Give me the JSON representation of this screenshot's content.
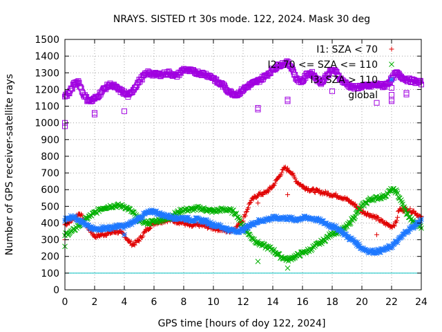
{
  "chart_data": {
    "type": "scatter",
    "title": "NRAYS. SISTED rt 30s mode. 122, 2024. Mask 30 deg",
    "xlabel": "GPS time [hours of doy 122, 2024]",
    "ylabel": "Number of GPS receiver-satellite rays",
    "xlim": [
      0,
      24
    ],
    "ylim": [
      0,
      1500
    ],
    "xticks": [
      0,
      2,
      4,
      6,
      8,
      10,
      12,
      14,
      16,
      18,
      20,
      22,
      24
    ],
    "yticks": [
      0,
      100,
      200,
      300,
      400,
      500,
      600,
      700,
      800,
      900,
      1000,
      1100,
      1200,
      1300,
      1400,
      1500
    ],
    "grid": true,
    "legend_position": "top-right",
    "reference_line": {
      "y": 100,
      "color": "#00c0c0"
    },
    "series": [
      {
        "name": "I1: SZA < 70",
        "color": "#e00000",
        "marker": "+",
        "x": [
          0,
          0.5,
          1,
          1.5,
          2,
          2.5,
          3,
          3.5,
          4,
          4.3,
          4.6,
          5,
          5.5,
          6,
          6.5,
          7,
          7.5,
          8,
          8.5,
          9,
          9.5,
          10,
          10.5,
          11,
          11.5,
          12,
          12.5,
          13,
          13.5,
          14,
          14.5,
          14.8,
          15.2,
          15.6,
          16,
          16.5,
          17,
          17.5,
          18,
          18.5,
          19,
          19.5,
          20,
          20.5,
          21,
          21.5,
          22,
          22.3,
          22.5,
          23,
          23.5,
          24
        ],
        "y": [
          390,
          420,
          460,
          380,
          320,
          330,
          340,
          350,
          330,
          290,
          270,
          300,
          360,
          400,
          410,
          420,
          410,
          400,
          380,
          390,
          380,
          370,
          360,
          350,
          370,
          420,
          530,
          570,
          580,
          620,
          690,
          730,
          710,
          650,
          620,
          600,
          590,
          580,
          570,
          560,
          540,
          510,
          470,
          450,
          430,
          400,
          380,
          400,
          480,
          480,
          470,
          430
        ],
        "outliers": {
          "x": [
            0,
            13,
            15,
            21,
            22
          ],
          "y": [
            300,
            520,
            570,
            330,
            255
          ]
        }
      },
      {
        "name": "I2: 70 <= SZA <= 110",
        "color": "#00b000",
        "marker": "x",
        "x": [
          0,
          0.5,
          1,
          1.5,
          2,
          2.5,
          3,
          3.5,
          4,
          4.5,
          5,
          5.5,
          6,
          6.5,
          7,
          7.5,
          8,
          8.5,
          9,
          9.5,
          10,
          10.5,
          11,
          11.5,
          12,
          12.5,
          13,
          13.5,
          14,
          14.5,
          15,
          15.5,
          16,
          16.5,
          17,
          17.5,
          18,
          18.5,
          19,
          19.5,
          20,
          20.5,
          21,
          21.5,
          22,
          22.3,
          22.6,
          23,
          23.5,
          24
        ],
        "y": [
          330,
          350,
          390,
          430,
          460,
          490,
          500,
          505,
          500,
          470,
          420,
          400,
          410,
          420,
          430,
          460,
          480,
          480,
          490,
          480,
          470,
          480,
          480,
          460,
          380,
          320,
          280,
          260,
          240,
          200,
          180,
          200,
          220,
          240,
          270,
          300,
          340,
          350,
          380,
          440,
          500,
          540,
          550,
          560,
          600,
          590,
          540,
          460,
          400,
          380
        ],
        "outliers": {
          "x": [
            0,
            13,
            15
          ],
          "y": [
            260,
            170,
            130
          ]
        }
      },
      {
        "name": "I3: SZA > 110",
        "color": "#1e78ff",
        "marker": "*",
        "x": [
          0,
          0.5,
          1,
          1.5,
          2,
          2.5,
          3,
          3.5,
          4,
          4.5,
          5,
          5.5,
          6,
          6.5,
          7,
          7.5,
          8,
          8.5,
          9,
          9.5,
          10,
          10.5,
          11,
          11.5,
          12,
          12.5,
          13,
          13.5,
          14,
          14.5,
          15,
          15.5,
          16,
          16.5,
          17,
          17.5,
          18,
          18.5,
          19,
          19.5,
          20,
          20.5,
          21,
          21.5,
          22,
          22.5,
          23,
          23.5,
          24
        ],
        "y": [
          420,
          440,
          420,
          380,
          360,
          370,
          370,
          380,
          380,
          400,
          430,
          460,
          470,
          450,
          440,
          430,
          430,
          420,
          420,
          410,
          390,
          380,
          360,
          350,
          360,
          390,
          410,
          420,
          430,
          430,
          430,
          420,
          430,
          430,
          420,
          400,
          380,
          360,
          320,
          290,
          250,
          230,
          230,
          240,
          260,
          300,
          350,
          380,
          420
        ],
        "outliers": {
          "x": [
            4,
            18
          ],
          "y": [
            330,
            390
          ]
        }
      },
      {
        "name": "global",
        "color": "#a000e0",
        "marker": "square",
        "x": [
          0,
          0.3,
          0.6,
          0.9,
          1.2,
          1.5,
          1.8,
          2.2,
          2.6,
          3,
          3.3,
          3.6,
          4,
          4.3,
          4.6,
          5,
          5.3,
          5.6,
          6,
          6.5,
          7,
          7.5,
          8,
          8.5,
          9,
          9.5,
          10,
          10.3,
          10.6,
          10.9,
          11.2,
          11.6,
          12,
          12.5,
          13,
          13.5,
          14,
          14.5,
          15,
          15.3,
          15.6,
          16,
          16.3,
          16.6,
          17,
          17.3,
          17.6,
          18,
          18.3,
          18.6,
          19,
          19.5,
          20,
          20.5,
          21,
          21.5,
          22,
          22.3,
          22.6,
          23,
          23.5,
          24
        ],
        "y": [
          1160,
          1180,
          1230,
          1250,
          1180,
          1140,
          1130,
          1160,
          1200,
          1230,
          1220,
          1200,
          1180,
          1160,
          1200,
          1250,
          1280,
          1300,
          1290,
          1290,
          1300,
          1280,
          1320,
          1310,
          1300,
          1290,
          1270,
          1240,
          1230,
          1200,
          1180,
          1170,
          1200,
          1230,
          1250,
          1280,
          1320,
          1350,
          1360,
          1330,
          1260,
          1250,
          1290,
          1300,
          1260,
          1240,
          1280,
          1320,
          1300,
          1260,
          1230,
          1210,
          1220,
          1220,
          1230,
          1220,
          1260,
          1300,
          1280,
          1260,
          1250,
          1240
        ],
        "outliers": {
          "x": [
            0,
            0,
            2,
            2,
            4,
            13,
            13,
            15,
            15,
            18,
            21,
            22,
            22,
            22,
            23,
            23
          ],
          "y": [
            1000,
            980,
            1050,
            1060,
            1070,
            1080,
            1090,
            1130,
            1140,
            1190,
            1120,
            1210,
            1140,
            1130,
            1180,
            1170
          ]
        }
      }
    ]
  }
}
